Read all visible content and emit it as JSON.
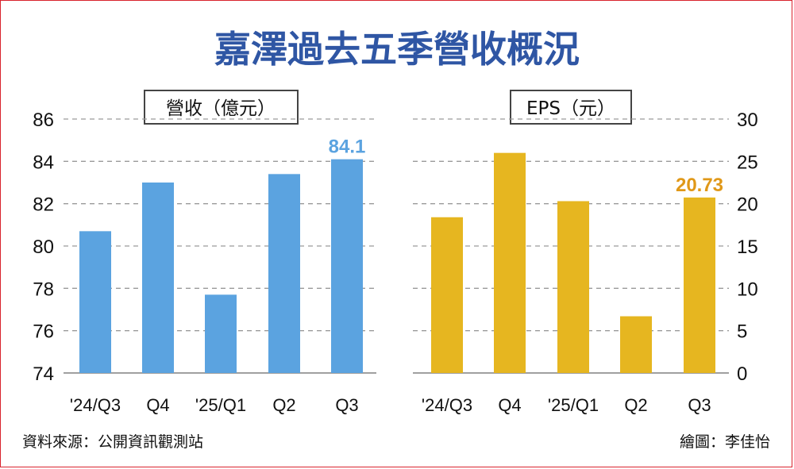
{
  "title": "嘉澤過去五季營收概況",
  "footer": {
    "source": "資料來源：公開資訊觀測站",
    "credit": "繪圖：李佳怡"
  },
  "colors": {
    "title": "#2f56a4",
    "revenue_bar": "#5ba3e0",
    "revenue_label": "#5ba3e0",
    "eps_bar": "#e6b620",
    "eps_label": "#e09818",
    "grid": "#9a9a9a",
    "border": "#d9232d"
  },
  "chart_data": [
    {
      "type": "bar",
      "title": "營收（億元）",
      "categories": [
        "'24/Q3",
        "Q4",
        "'25/Q1",
        "Q2",
        "Q3"
      ],
      "values": [
        80.7,
        83.0,
        77.7,
        83.4,
        84.1
      ],
      "ylim": [
        74,
        86
      ],
      "yticks": [
        "86",
        "84",
        "82",
        "80",
        "78",
        "76",
        "74"
      ],
      "axis_side": "left",
      "grid": true,
      "data_labels": [
        {
          "index": 4,
          "text": "84.1"
        }
      ]
    },
    {
      "type": "bar",
      "title": "EPS（元）",
      "categories": [
        "'24/Q3",
        "Q4",
        "'25/Q1",
        "Q2",
        "Q3"
      ],
      "values": [
        18.4,
        26.0,
        20.3,
        6.7,
        20.73
      ],
      "ylim": [
        0,
        30
      ],
      "yticks": [
        "30",
        "25",
        "20",
        "15",
        "10",
        "5",
        "0"
      ],
      "axis_side": "right",
      "grid": true,
      "data_labels": [
        {
          "index": 4,
          "text": "20.73"
        }
      ]
    }
  ]
}
